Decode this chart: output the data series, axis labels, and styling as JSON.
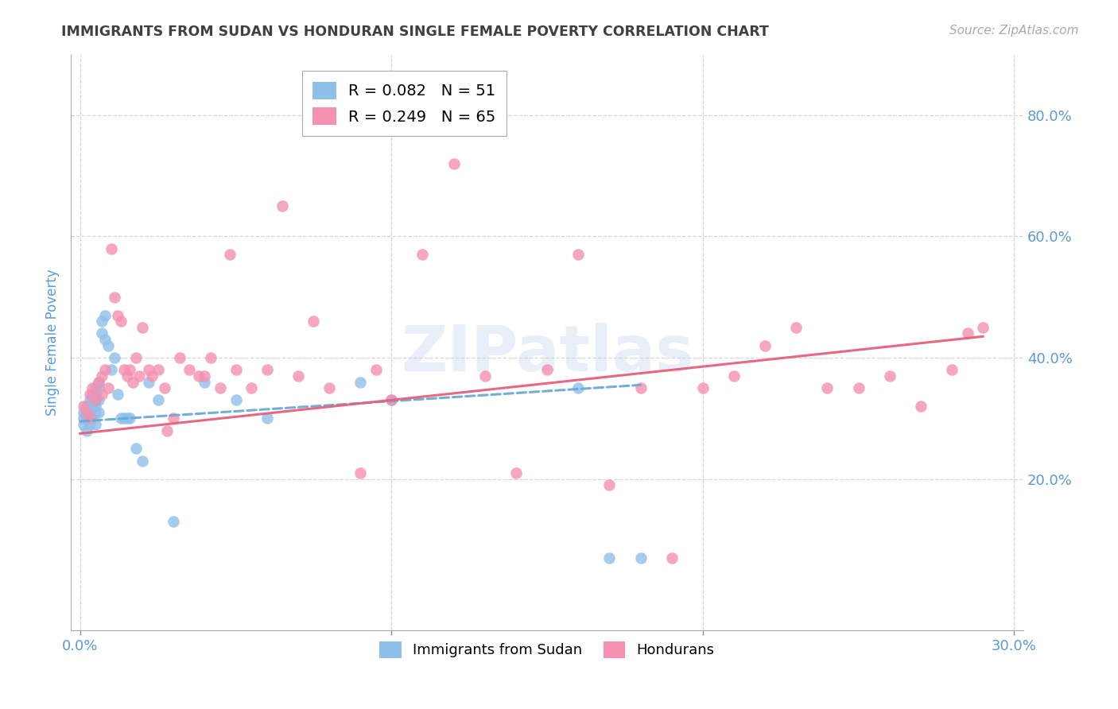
{
  "title": "IMMIGRANTS FROM SUDAN VS HONDURAN SINGLE FEMALE POVERTY CORRELATION CHART",
  "source": "Source: ZipAtlas.com",
  "ylabel": "Single Female Poverty",
  "watermark": "ZIPatlas",
  "xlim_min": -0.003,
  "xlim_max": 0.303,
  "ylim_min": -0.05,
  "ylim_max": 0.9,
  "xticks": [
    0.0,
    0.1,
    0.2,
    0.3
  ],
  "xtick_labels": [
    "0.0%",
    "",
    "",
    "30.0%"
  ],
  "yticks": [
    0.2,
    0.4,
    0.6,
    0.8
  ],
  "ytick_labels": [
    "20.0%",
    "40.0%",
    "60.0%",
    "80.0%"
  ],
  "legend_blue_r": "R = 0.082",
  "legend_blue_n": "N = 51",
  "legend_pink_r": "R = 0.249",
  "legend_pink_n": "N = 65",
  "blue_color": "#8fc0ea",
  "pink_color": "#f490b0",
  "line_blue_color": "#6aaad4",
  "line_pink_color": "#e8607a",
  "background_color": "#ffffff",
  "grid_color": "#cccccc",
  "axis_label_color": "#5b9bd5",
  "title_color": "#404040",
  "blue_x": [
    0.001,
    0.001,
    0.001,
    0.002,
    0.002,
    0.002,
    0.002,
    0.003,
    0.003,
    0.003,
    0.003,
    0.003,
    0.004,
    0.004,
    0.004,
    0.004,
    0.005,
    0.005,
    0.005,
    0.005,
    0.005,
    0.005,
    0.006,
    0.006,
    0.006,
    0.006,
    0.007,
    0.007,
    0.008,
    0.008,
    0.009,
    0.01,
    0.011,
    0.012,
    0.013,
    0.014,
    0.015,
    0.016,
    0.018,
    0.02,
    0.022,
    0.025,
    0.03,
    0.04,
    0.05,
    0.06,
    0.09,
    0.1,
    0.16,
    0.17,
    0.18
  ],
  "blue_y": [
    0.31,
    0.3,
    0.29,
    0.32,
    0.31,
    0.3,
    0.28,
    0.33,
    0.32,
    0.31,
    0.3,
    0.29,
    0.34,
    0.33,
    0.32,
    0.3,
    0.35,
    0.34,
    0.33,
    0.32,
    0.31,
    0.29,
    0.36,
    0.35,
    0.33,
    0.31,
    0.46,
    0.44,
    0.47,
    0.43,
    0.42,
    0.38,
    0.4,
    0.34,
    0.3,
    0.3,
    0.3,
    0.3,
    0.25,
    0.23,
    0.36,
    0.33,
    0.13,
    0.36,
    0.33,
    0.3,
    0.36,
    0.33,
    0.35,
    0.07,
    0.07
  ],
  "pink_x": [
    0.001,
    0.002,
    0.003,
    0.003,
    0.004,
    0.005,
    0.006,
    0.007,
    0.007,
    0.008,
    0.009,
    0.01,
    0.011,
    0.012,
    0.013,
    0.014,
    0.015,
    0.016,
    0.017,
    0.018,
    0.019,
    0.02,
    0.022,
    0.023,
    0.025,
    0.027,
    0.028,
    0.03,
    0.032,
    0.035,
    0.038,
    0.04,
    0.042,
    0.045,
    0.048,
    0.05,
    0.055,
    0.06,
    0.065,
    0.07,
    0.075,
    0.08,
    0.09,
    0.095,
    0.1,
    0.11,
    0.12,
    0.13,
    0.14,
    0.15,
    0.16,
    0.17,
    0.18,
    0.19,
    0.2,
    0.21,
    0.22,
    0.23,
    0.24,
    0.25,
    0.26,
    0.27,
    0.28,
    0.285,
    0.29
  ],
  "pink_y": [
    0.32,
    0.31,
    0.34,
    0.3,
    0.35,
    0.33,
    0.36,
    0.37,
    0.34,
    0.38,
    0.35,
    0.58,
    0.5,
    0.47,
    0.46,
    0.38,
    0.37,
    0.38,
    0.36,
    0.4,
    0.37,
    0.45,
    0.38,
    0.37,
    0.38,
    0.35,
    0.28,
    0.3,
    0.4,
    0.38,
    0.37,
    0.37,
    0.4,
    0.35,
    0.57,
    0.38,
    0.35,
    0.38,
    0.65,
    0.37,
    0.46,
    0.35,
    0.21,
    0.38,
    0.33,
    0.57,
    0.72,
    0.37,
    0.21,
    0.38,
    0.57,
    0.19,
    0.35,
    0.07,
    0.35,
    0.37,
    0.42,
    0.45,
    0.35,
    0.35,
    0.37,
    0.32,
    0.38,
    0.44,
    0.45
  ]
}
